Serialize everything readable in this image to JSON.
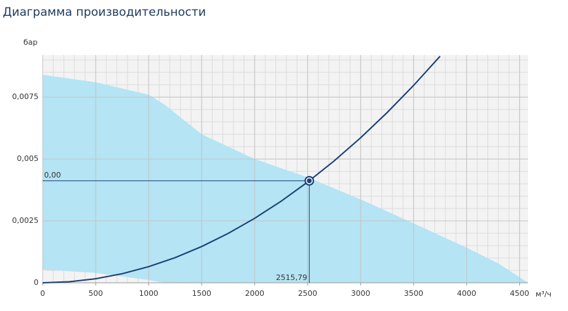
{
  "chart_data": {
    "type": "performance",
    "title": "Диаграмма производительности",
    "y_label": "бар",
    "x_label": "м³/ч",
    "xlim": [
      0,
      4580
    ],
    "ylim": [
      0,
      0.0092
    ],
    "xticks": [
      0,
      500,
      1000,
      1500,
      2000,
      2500,
      3000,
      3500,
      4000,
      4500
    ],
    "yticks": [
      0,
      {
        "value": 0.0025,
        "label": "0,0025"
      },
      {
        "value": 0.005,
        "label": "0,005"
      },
      {
        "value": 0.0075,
        "label": "0,0075"
      }
    ],
    "grid": true,
    "envelope": {
      "color": "#b5e4f4",
      "x": [
        0,
        500,
        1000,
        1150,
        1500,
        2000,
        2500,
        3000,
        3500,
        4000,
        4300,
        4580
      ],
      "upper": [
        0.0084,
        0.0081,
        0.0076,
        0.0072,
        0.006,
        0.005,
        0.00426,
        0.00337,
        0.0024,
        0.00142,
        0.00078,
        0
      ],
      "lower": [
        0.00053,
        0.0004,
        0.00011,
        0,
        0,
        0,
        0,
        0,
        0,
        0,
        0,
        0
      ]
    },
    "system_curve": {
      "color": "#1a3f75",
      "x": [
        0,
        250,
        500,
        750,
        1000,
        1250,
        1500,
        1750,
        2000,
        2250,
        2500,
        2750,
        3000,
        3250,
        3500,
        3750
      ],
      "values": [
        0,
        4.07e-05,
        0.000163,
        0.000366,
        0.000651,
        0.001017,
        0.001465,
        0.001994,
        0.002604,
        0.003296,
        0.004069,
        0.004923,
        0.005859,
        0.006876,
        0.007974,
        0.009154
      ]
    },
    "point": {
      "x": 2515.79,
      "y": 0.00412,
      "x_label": "2515,79",
      "y_label": "0,00",
      "color": "#1a3f75"
    }
  }
}
